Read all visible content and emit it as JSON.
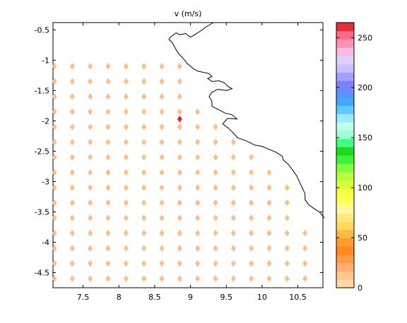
{
  "chart_data": [
    {
      "type": "scatter",
      "title": "v (m/s)",
      "xlabel": "",
      "ylabel": "",
      "xlim": [
        7.08,
        10.85
      ],
      "ylim": [
        -4.75,
        -0.38
      ],
      "xticks": [
        "7.5",
        "8",
        "8.5",
        "9",
        "9.5",
        "10",
        "10.5"
      ],
      "yticks": [
        "-0.5",
        "-1",
        "-1.5",
        "-2",
        "-2.5",
        "-3",
        "-3.5",
        "-4",
        "-4.5"
      ],
      "grid": false,
      "marker": "diamond",
      "grid_x": [
        7.1,
        7.35,
        7.6,
        7.85,
        8.1,
        8.35,
        8.6,
        8.85,
        9.1,
        9.35,
        9.6,
        9.85,
        10.1,
        10.35,
        10.6
      ],
      "grid_y": [
        -1.1,
        -1.35,
        -1.6,
        -1.85,
        -2.1,
        -2.35,
        -2.6,
        -2.85,
        -3.1,
        -3.35,
        -3.6,
        -3.85,
        -4.1,
        -4.35,
        -4.6
      ],
      "row_last_x": [
        8.85,
        8.85,
        8.85,
        9.1,
        9.35,
        9.6,
        9.85,
        10.1,
        10.35,
        10.35,
        10.35,
        10.6,
        10.6,
        10.6,
        10.6
      ],
      "point_value": 20,
      "highlight": {
        "x": 8.85,
        "y": -1.97,
        "value": 265,
        "color": "#e0203a"
      },
      "point_color": "#f8c08c",
      "coastline": [
        [
          9.32,
          -0.38
        ],
        [
          9.22,
          -0.45
        ],
        [
          9.14,
          -0.52
        ],
        [
          9.06,
          -0.58
        ],
        [
          9.0,
          -0.62
        ],
        [
          8.93,
          -0.56
        ],
        [
          8.85,
          -0.58
        ],
        [
          8.8,
          -0.55
        ],
        [
          8.72,
          -0.62
        ],
        [
          8.7,
          -0.66
        ],
        [
          8.74,
          -0.7
        ],
        [
          8.77,
          -0.76
        ],
        [
          8.8,
          -0.83
        ],
        [
          8.84,
          -0.9
        ],
        [
          8.88,
          -0.95
        ],
        [
          8.92,
          -1.0
        ],
        [
          8.95,
          -1.05
        ],
        [
          9.0,
          -1.1
        ],
        [
          9.04,
          -1.14
        ],
        [
          9.1,
          -1.18
        ],
        [
          9.18,
          -1.2
        ],
        [
          9.26,
          -1.22
        ],
        [
          9.3,
          -1.27
        ],
        [
          9.24,
          -1.3
        ],
        [
          9.3,
          -1.35
        ],
        [
          9.4,
          -1.34
        ],
        [
          9.47,
          -1.37
        ],
        [
          9.52,
          -1.43
        ],
        [
          9.58,
          -1.47
        ],
        [
          9.5,
          -1.5
        ],
        [
          9.38,
          -1.48
        ],
        [
          9.3,
          -1.53
        ],
        [
          9.26,
          -1.6
        ],
        [
          9.3,
          -1.67
        ],
        [
          9.3,
          -1.76
        ],
        [
          9.4,
          -1.82
        ],
        [
          9.48,
          -1.87
        ],
        [
          9.58,
          -1.9
        ],
        [
          9.65,
          -1.97
        ],
        [
          9.52,
          -1.96
        ],
        [
          9.45,
          -2.05
        ],
        [
          9.53,
          -2.12
        ],
        [
          9.6,
          -2.2
        ],
        [
          9.66,
          -2.28
        ],
        [
          9.78,
          -2.33
        ],
        [
          9.9,
          -2.4
        ],
        [
          10.0,
          -2.42
        ],
        [
          10.1,
          -2.47
        ],
        [
          10.2,
          -2.52
        ],
        [
          10.28,
          -2.58
        ],
        [
          10.3,
          -2.65
        ],
        [
          10.37,
          -2.72
        ],
        [
          10.42,
          -2.8
        ],
        [
          10.48,
          -2.9
        ],
        [
          10.52,
          -3.0
        ],
        [
          10.56,
          -3.1
        ],
        [
          10.6,
          -3.2
        ],
        [
          10.6,
          -3.3
        ],
        [
          10.65,
          -3.38
        ],
        [
          10.72,
          -3.44
        ],
        [
          10.8,
          -3.5
        ],
        [
          10.87,
          -3.6
        ]
      ]
    },
    {
      "type": "heatmap",
      "role": "colorbar",
      "ylim": [
        0,
        265
      ],
      "yticks": [
        "0",
        "50",
        "100",
        "150",
        "200",
        "250"
      ],
      "colors": [
        "#ffd9a8",
        "#ffc88a",
        "#ffb070",
        "#ff9a48",
        "#ff8820",
        "#ff9a30",
        "#ffb840",
        "#ffd860",
        "#ffe880",
        "#fff8a0",
        "#ffff60",
        "#f8ff40",
        "#d8ff40",
        "#b0ff40",
        "#80ff40",
        "#40f040",
        "#20d820",
        "#40ff80",
        "#a0ffd0",
        "#c0fff0",
        "#a0e8ff",
        "#60c8ff",
        "#40a8ff",
        "#6090ff",
        "#8080ff",
        "#a0a0ff",
        "#c8c0ff",
        "#e0d0ff",
        "#ffb8e0",
        "#ff90b8",
        "#ff6a8a",
        "#e0303a"
      ]
    }
  ]
}
